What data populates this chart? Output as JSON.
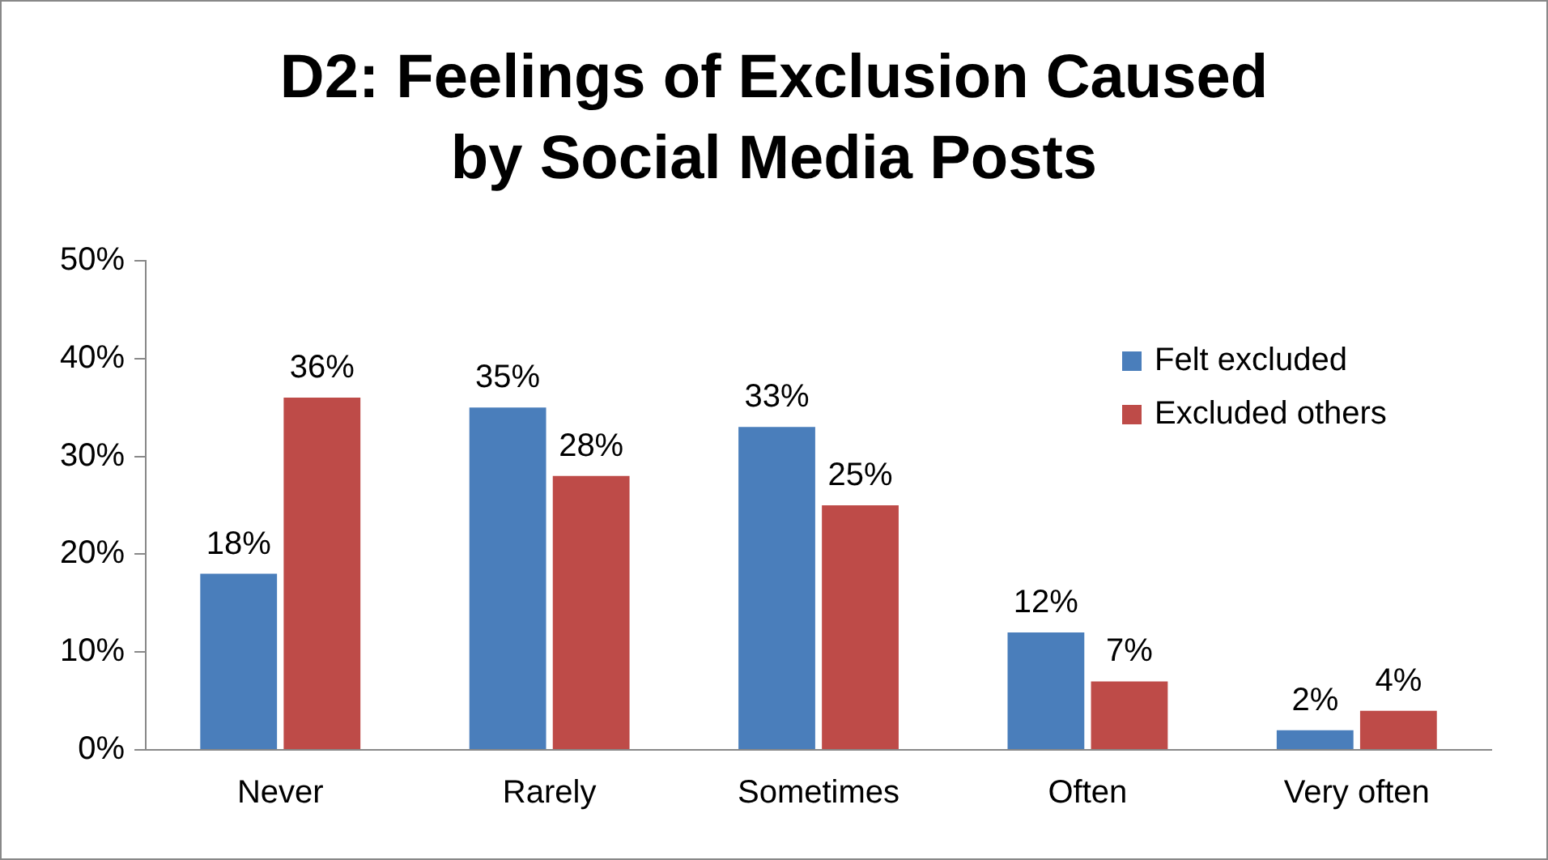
{
  "chart_data": {
    "type": "bar",
    "title": "D2:  Feelings of Exclusion Caused by Social Media Posts",
    "categories": [
      "Never",
      "Rarely",
      "Sometimes",
      "Often",
      "Very often"
    ],
    "series": [
      {
        "name": "Felt excluded",
        "color": "#4a7ebb",
        "values": [
          18,
          35,
          33,
          12,
          2
        ],
        "value_labels": [
          "18%",
          "35%",
          "33%",
          "12%",
          "2%"
        ]
      },
      {
        "name": "Excluded others",
        "color": "#be4b48",
        "values": [
          36,
          28,
          25,
          7,
          4
        ],
        "value_labels": [
          "36%",
          "28%",
          "25%",
          "7%",
          "4%"
        ]
      }
    ],
    "ylim": [
      0,
      50
    ],
    "yticks": [
      {
        "value": 0,
        "label": "0%"
      },
      {
        "value": 10,
        "label": "10%"
      },
      {
        "value": 20,
        "label": "20%"
      },
      {
        "value": 30,
        "label": "30%"
      },
      {
        "value": 40,
        "label": "40%"
      },
      {
        "value": 50,
        "label": "50%"
      }
    ],
    "grid": false,
    "legend": "top right"
  }
}
